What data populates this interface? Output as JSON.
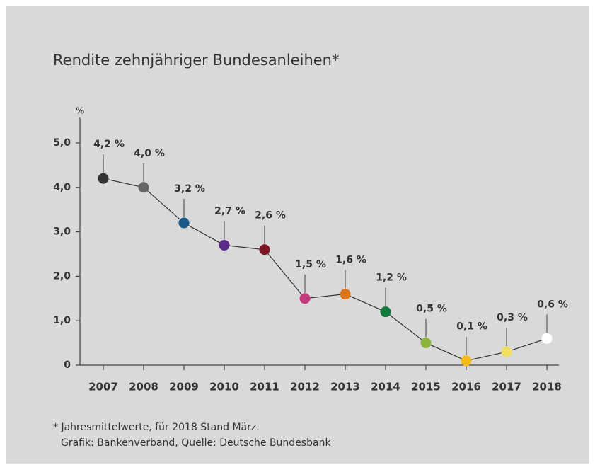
{
  "chart_data": {
    "type": "line",
    "title": "Rendite zehnjähriger Bundesanleihen*",
    "y_label": "%",
    "categories": [
      "2007",
      "2008",
      "2009",
      "2010",
      "2011",
      "2012",
      "2013",
      "2014",
      "2015",
      "2016",
      "2017",
      "2018"
    ],
    "values": [
      4.2,
      4.0,
      3.2,
      2.7,
      2.6,
      1.5,
      1.6,
      1.2,
      0.5,
      0.1,
      0.3,
      0.6
    ],
    "value_labels": [
      "4,2 %",
      "4,0 %",
      "3,2 %",
      "2,7 %",
      "2,6 %",
      "1,5 %",
      "1,6 %",
      "1,2 %",
      "0,5 %",
      "0,1 %",
      "0,3 %",
      "0,6 %"
    ],
    "point_colors": [
      "#333333",
      "#686868",
      "#1a5a86",
      "#5a2c88",
      "#7c1424",
      "#c23b7c",
      "#d9761e",
      "#107a3c",
      "#8db43b",
      "#f6b81c",
      "#efe062",
      "#ffffff"
    ],
    "line_color": "#333333",
    "ylim": [
      0,
      5.6
    ],
    "yticks": [
      0,
      {
        "value": 1,
        "label": "1,0"
      },
      {
        "value": 2,
        "label": "2,0"
      },
      {
        "value": 3,
        "label": "3,0"
      },
      {
        "value": 4,
        "label": "4,0"
      },
      {
        "value": 5,
        "label": "5,0"
      }
    ],
    "footnote": [
      "* Jahresmittelwerte, für 2018 Stand März.",
      "Grafik: Bankenverband, Quelle: Deutsche Bundesbank"
    ]
  }
}
